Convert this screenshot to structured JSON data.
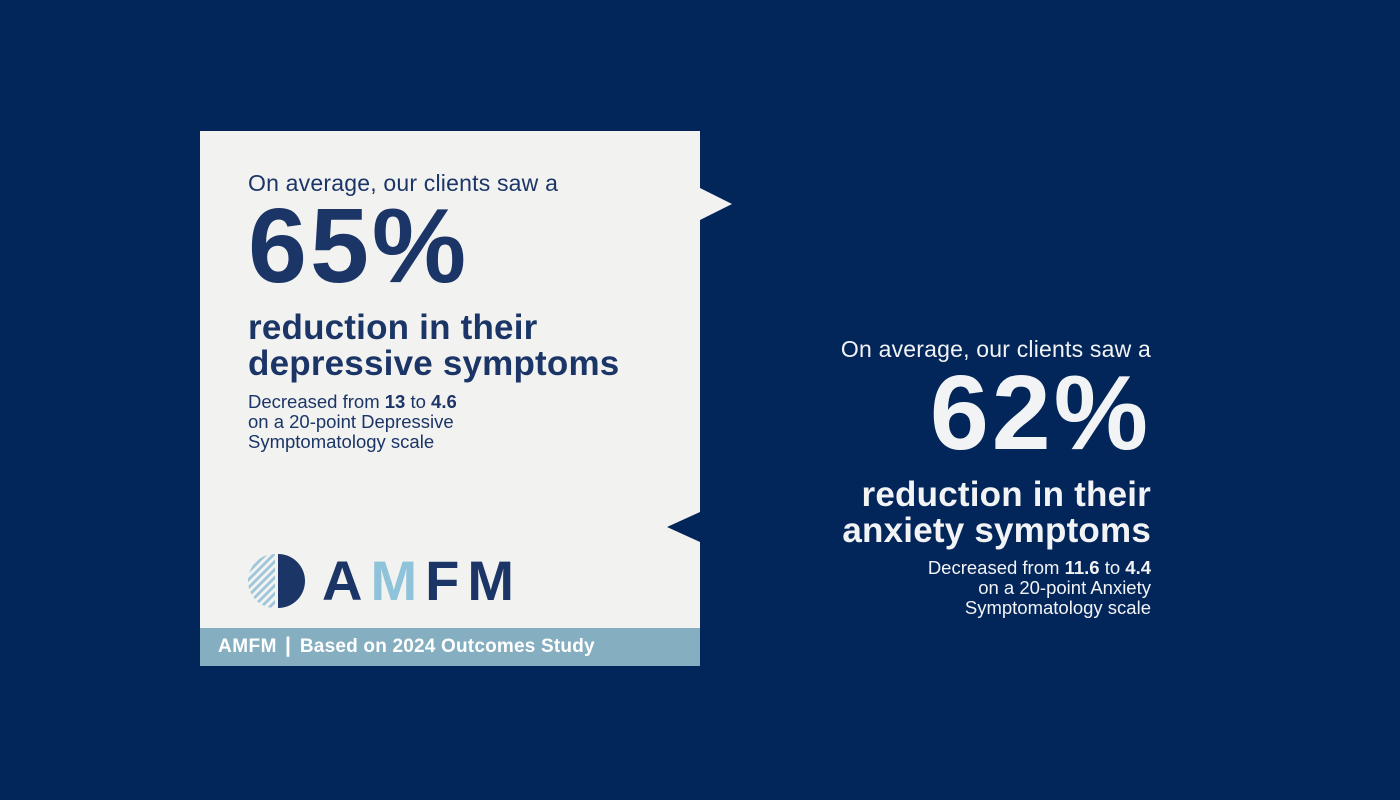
{
  "colors": {
    "background_navy": "#03265a",
    "card_background": "#f2f2f1",
    "navy_text": "#1b3567",
    "footer_bar": "#85afc0",
    "logo_light_blue": "#8fc3da",
    "white_text": "#f2f3f5"
  },
  "depression_card": {
    "intro": "On average, our clients saw a",
    "stat_value": "65%",
    "headline_line1": "reduction in their",
    "headline_line2": "depressive symptoms",
    "detail": {
      "prefix": "Decreased from ",
      "from_value": "13",
      "connector": " to ",
      "to_value": "4.6",
      "line2": "on a 20-point Depressive",
      "line3": "Symptomatology scale"
    },
    "footer": {
      "brand": "AMFM",
      "separator": "|",
      "caption": "Based on 2024 Outcomes Study"
    }
  },
  "logo": {
    "letters": [
      {
        "char": "A"
      },
      {
        "char": "M"
      },
      {
        "char": "F"
      },
      {
        "char": "M"
      }
    ]
  },
  "anxiety_block": {
    "intro": "On average, our clients saw a",
    "stat_value": "62%",
    "headline_line1": "reduction in their",
    "headline_line2": "anxiety symptoms",
    "detail": {
      "prefix": "Decreased from ",
      "from_value": "11.6",
      "connector": " to ",
      "to_value": "4.4",
      "line2": "on a 20-point Anxiety",
      "line3": "Symptomatology scale"
    }
  }
}
